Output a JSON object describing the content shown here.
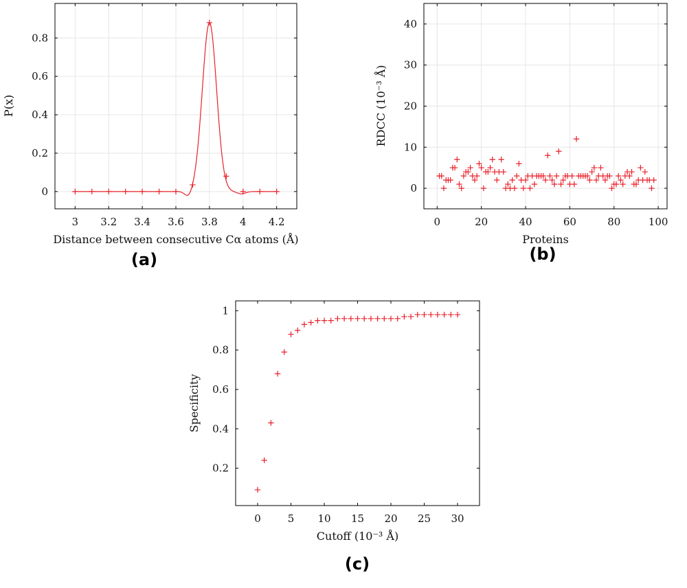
{
  "chart_data": [
    {
      "type": "line",
      "panel_label": "(a)",
      "xlabel": "Distance between consecutive Cα atoms (Å)",
      "ylabel": "P(x)",
      "xlim": [
        2.88,
        4.32
      ],
      "ylim": [
        -0.09,
        0.98
      ],
      "xticks": [
        3,
        3.2,
        3.4,
        3.6,
        3.8,
        4,
        4.2
      ],
      "xtick_labels": [
        "3",
        "3.2",
        "3.4",
        "3.6",
        "3.8",
        "4",
        "4.2"
      ],
      "yticks": [
        0,
        0.2,
        0.4,
        0.6,
        0.8
      ],
      "ytick_labels": [
        "0",
        "0.2",
        "0.4",
        "0.6",
        "0.8"
      ],
      "grid": true,
      "color": "#e8202a",
      "series": [
        {
          "x": [
            3.0,
            3.1,
            3.2,
            3.3,
            3.4,
            3.5,
            3.6,
            3.7,
            3.8,
            3.9,
            4.0,
            4.1,
            4.2
          ],
          "y": [
            0,
            0,
            0,
            0,
            0,
            0,
            0,
            0.035,
            0.88,
            0.08,
            0,
            0,
            0
          ]
        }
      ]
    },
    {
      "type": "scatter",
      "panel_label": "(b)",
      "xlabel": "Proteins",
      "ylabel": "RDCC (10⁻³ Å)",
      "xlim": [
        -6,
        104
      ],
      "ylim": [
        -5,
        45
      ],
      "xticks": [
        0,
        20,
        40,
        60,
        80,
        100
      ],
      "xtick_labels": [
        "0",
        "20",
        "40",
        "60",
        "80",
        "100"
      ],
      "yticks": [
        0,
        10,
        20,
        30,
        40
      ],
      "ytick_labels": [
        "0",
        "10",
        "20",
        "30",
        "40"
      ],
      "grid": true,
      "color": "#e8202a",
      "series": [
        {
          "x": [
            1,
            2,
            3,
            4,
            5,
            6,
            7,
            8,
            9,
            10,
            11,
            12,
            13,
            14,
            15,
            16,
            17,
            18,
            19,
            20,
            21,
            22,
            23,
            24,
            25,
            26,
            27,
            28,
            29,
            30,
            31,
            32,
            33,
            34,
            35,
            36,
            37,
            38,
            39,
            40,
            41,
            42,
            43,
            44,
            45,
            46,
            47,
            48,
            49,
            50,
            51,
            52,
            53,
            54,
            55,
            56,
            57,
            58,
            59,
            60,
            61,
            62,
            63,
            64,
            65,
            66,
            67,
            68,
            69,
            70,
            71,
            72,
            73,
            74,
            75,
            76,
            77,
            78,
            79,
            80,
            81,
            82,
            83,
            84,
            85,
            86,
            87,
            88,
            89,
            90,
            91,
            92,
            93,
            94,
            95,
            96,
            97,
            98
          ],
          "y": [
            3,
            3,
            0,
            2,
            2,
            2,
            5,
            5,
            7,
            1,
            0,
            3,
            4,
            4,
            5,
            3,
            2,
            3,
            6,
            5,
            0,
            4,
            4,
            5,
            7,
            4,
            2,
            4,
            7,
            4,
            0,
            1,
            0,
            2,
            0,
            3,
            6,
            2,
            0,
            2,
            3,
            0,
            3,
            1,
            3,
            3,
            3,
            3,
            2,
            8,
            3,
            2,
            1,
            3,
            9,
            1,
            2,
            3,
            3,
            1,
            3,
            1,
            12,
            3,
            3,
            3,
            3,
            3,
            2,
            4,
            5,
            2,
            3,
            5,
            3,
            2,
            3,
            3,
            0,
            1,
            1,
            3,
            2,
            1,
            3,
            4,
            3,
            4,
            1,
            1,
            2,
            5,
            2,
            4,
            2,
            2,
            0,
            2
          ]
        }
      ]
    },
    {
      "type": "scatter",
      "panel_label": "(c)",
      "xlabel": "Cutoff (10⁻³ Å)",
      "ylabel": "Specificity",
      "xlim": [
        -3.3,
        33.3
      ],
      "ylim": [
        0.01,
        1.05
      ],
      "xticks": [
        0,
        5,
        10,
        15,
        20,
        25,
        30
      ],
      "xtick_labels": [
        "0",
        "5",
        "10",
        "15",
        "20",
        "25",
        "30"
      ],
      "yticks": [
        0.2,
        0.4,
        0.6,
        0.8,
        1
      ],
      "ytick_labels": [
        "0.2",
        "0.4",
        "0.6",
        "0.8",
        "1"
      ],
      "grid": false,
      "color": "#e8202a",
      "series": [
        {
          "x": [
            0,
            1,
            2,
            3,
            4,
            5,
            6,
            7,
            8,
            9,
            10,
            11,
            12,
            13,
            14,
            15,
            16,
            17,
            18,
            19,
            20,
            21,
            22,
            23,
            24,
            25,
            26,
            27,
            28,
            29,
            30
          ],
          "y": [
            0.09,
            0.24,
            0.43,
            0.68,
            0.79,
            0.88,
            0.9,
            0.93,
            0.94,
            0.95,
            0.95,
            0.95,
            0.96,
            0.96,
            0.96,
            0.96,
            0.96,
            0.96,
            0.96,
            0.96,
            0.96,
            0.96,
            0.97,
            0.97,
            0.98,
            0.98,
            0.98,
            0.98,
            0.98,
            0.98,
            0.98
          ]
        }
      ]
    }
  ]
}
